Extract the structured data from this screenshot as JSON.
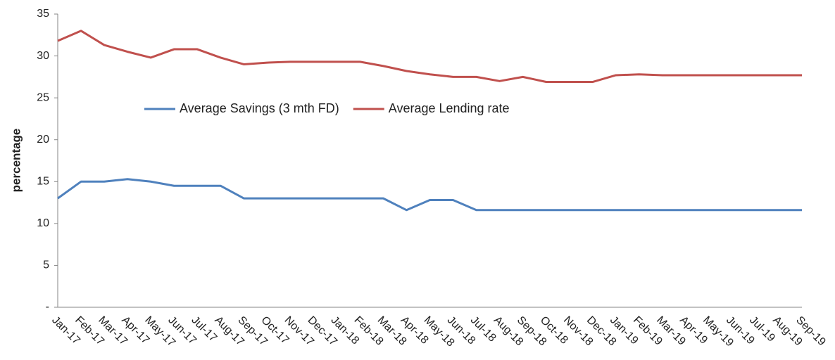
{
  "chart_data": {
    "type": "line",
    "ylabel": "percentage",
    "categories": [
      "Jan-17",
      "Feb-17",
      "Mar-17",
      "Apr-17",
      "May-17",
      "Jun-17",
      "Jul-17",
      "Aug-17",
      "Sep-17",
      "Oct-17",
      "Nov-17",
      "Dec-17",
      "Jan-18",
      "Feb-18",
      "Mar-18",
      "Apr-18",
      "May-18",
      "Jun-18",
      "Jul-18",
      "Aug-18",
      "Sep-18",
      "Oct-18",
      "Nov-18",
      "Dec-18",
      "Jan-19",
      "Feb-19",
      "Mar-19",
      "Apr-19",
      "May-19",
      "Jun-19",
      "Jul-19",
      "Aug-19",
      "Sep-19"
    ],
    "series": [
      {
        "name": "Average Savings (3 mth FD)",
        "color": "#4f81bd",
        "values": [
          13.0,
          15.0,
          15.0,
          15.3,
          15.0,
          14.5,
          14.5,
          14.5,
          13.0,
          13.0,
          13.0,
          13.0,
          13.0,
          13.0,
          13.0,
          11.6,
          12.8,
          12.8,
          11.6,
          11.6,
          11.6,
          11.6,
          11.6,
          11.6,
          11.6,
          11.6,
          11.6,
          11.6,
          11.6,
          11.6,
          11.6,
          11.6,
          11.6
        ]
      },
      {
        "name": "Average Lending rate",
        "color": "#c0504d",
        "values": [
          31.8,
          33.0,
          31.3,
          30.5,
          29.8,
          30.8,
          30.8,
          29.8,
          29.0,
          29.2,
          29.3,
          29.3,
          29.3,
          29.3,
          28.8,
          28.2,
          27.8,
          27.5,
          27.5,
          27.0,
          27.5,
          26.9,
          26.9,
          26.9,
          27.7,
          27.8,
          27.7,
          27.7,
          27.7,
          27.7,
          27.7,
          27.7,
          27.7
        ]
      }
    ],
    "ylim": [
      0,
      35
    ],
    "yticks": [
      {
        "value": 0,
        "label": "-"
      },
      5,
      10,
      15,
      20,
      25,
      30,
      35
    ],
    "legend": "center"
  }
}
